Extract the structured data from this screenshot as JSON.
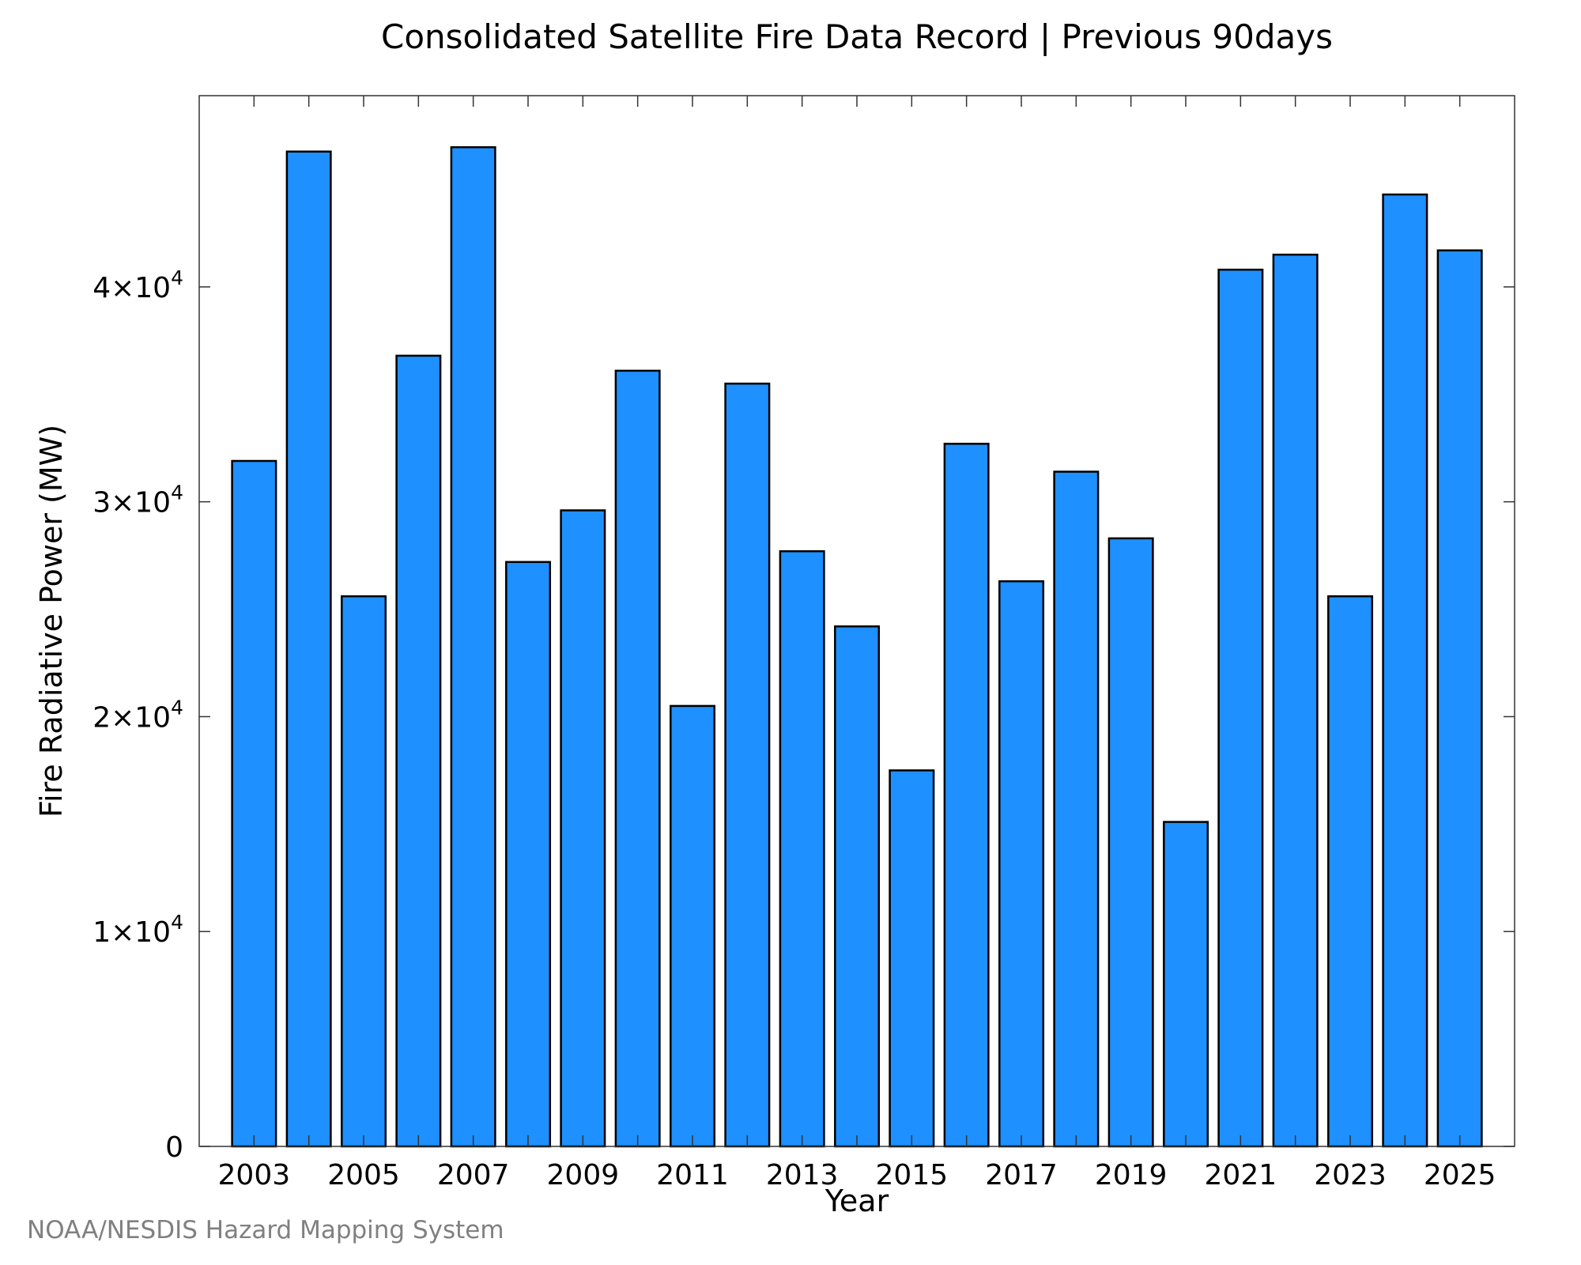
{
  "chart_data": {
    "type": "bar",
    "title": "Consolidated Satellite Fire Data Record | Previous 90days",
    "xlabel": "Year",
    "ylabel": "Fire Radiative Power (MW)",
    "categories": [
      "2003",
      "2004",
      "2005",
      "2006",
      "2007",
      "2008",
      "2009",
      "2010",
      "2011",
      "2012",
      "2013",
      "2014",
      "2015",
      "2016",
      "2017",
      "2018",
      "2019",
      "2020",
      "2021",
      "2022",
      "2023",
      "2024",
      "2025"
    ],
    "values": [
      31900,
      46300,
      25600,
      36800,
      46500,
      27200,
      29600,
      36100,
      20500,
      35500,
      27700,
      24200,
      17500,
      32700,
      26300,
      31400,
      28300,
      15100,
      40800,
      41500,
      25600,
      44300,
      41700
    ],
    "ylim": [
      0,
      48900
    ],
    "yticks": [
      {
        "value": 0,
        "mantissa": "0",
        "exponent": ""
      },
      {
        "value": 10000,
        "mantissa": "1×10",
        "exponent": "4"
      },
      {
        "value": 20000,
        "mantissa": "2×10",
        "exponent": "4"
      },
      {
        "value": 30000,
        "mantissa": "3×10",
        "exponent": "4"
      },
      {
        "value": 40000,
        "mantissa": "4×10",
        "exponent": "4"
      }
    ],
    "xtick_labels": [
      "2003",
      "2005",
      "2007",
      "2009",
      "2011",
      "2013",
      "2015",
      "2017",
      "2019",
      "2021",
      "2023",
      "2025"
    ],
    "bar_color": "#1e90ff",
    "edge_color": "#000000",
    "grid": false,
    "legend": "none"
  },
  "credit": "NOAA/NESDIS Hazard Mapping System"
}
